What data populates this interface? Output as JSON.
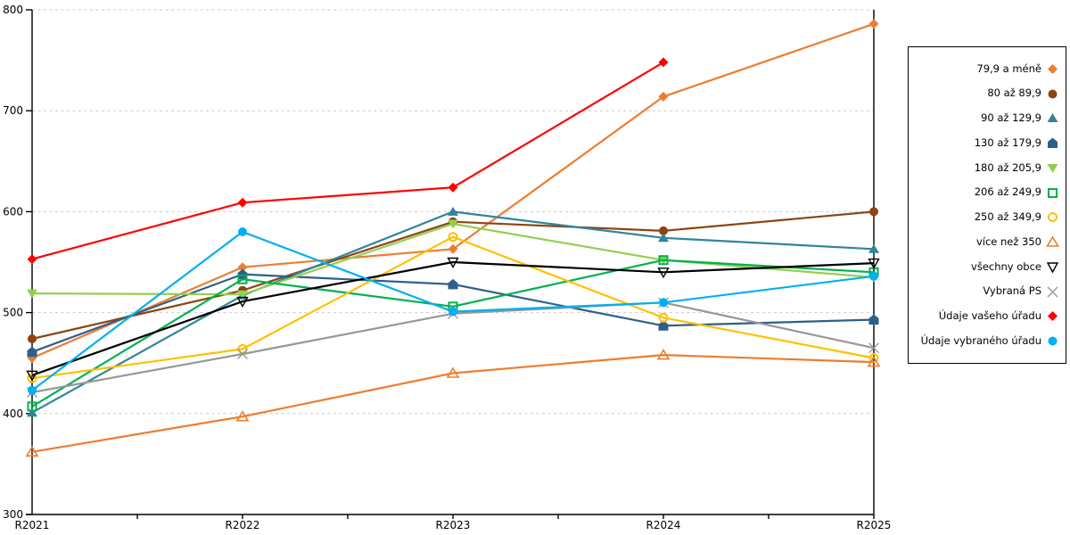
{
  "chart_data": {
    "type": "line",
    "title": "",
    "xlabel": "",
    "ylabel": "",
    "categories": [
      "R2021",
      "R2022",
      "R2023",
      "R2024",
      "R2025"
    ],
    "y_ticks": [
      300,
      400,
      500,
      600,
      700,
      800
    ],
    "ylim": [
      300,
      800
    ],
    "grid": "horizontal-dashed",
    "legend_position": "right",
    "gridline_color": "#c9c9c9",
    "axis_color": "#000000",
    "series": [
      {
        "name": "79,9 a méně",
        "color": "#ED7D31",
        "marker": "diamond-filled",
        "values": [
          455,
          545,
          563,
          714,
          786
        ]
      },
      {
        "name": "80 až 89,9",
        "color": "#8B4512",
        "marker": "circle-filled",
        "values": [
          474,
          522,
          590,
          581,
          600
        ]
      },
      {
        "name": "90 až 129,9",
        "color": "#31849B",
        "marker": "triangle-up-filled",
        "values": [
          401,
          517,
          600,
          574,
          563
        ]
      },
      {
        "name": "130 až 179,9",
        "color": "#2E5F8A",
        "marker": "pentagon-filled",
        "values": [
          461,
          538,
          528,
          487,
          493
        ]
      },
      {
        "name": "180 až 205,9",
        "color": "#92D050",
        "marker": "triangle-down-filled",
        "values": [
          519,
          518,
          588,
          552,
          535
        ]
      },
      {
        "name": "206 až 249,9",
        "color": "#00B050",
        "marker": "square-hollow",
        "values": [
          407,
          533,
          506,
          552,
          540
        ]
      },
      {
        "name": "250 až 349,9",
        "color": "#FFC000",
        "marker": "circle-hollow",
        "values": [
          435,
          464,
          575,
          495,
          455
        ]
      },
      {
        "name": "více než 350",
        "color": "#ED7D31",
        "marker": "triangle-up-hollow",
        "values": [
          362,
          397,
          440,
          458,
          451
        ]
      },
      {
        "name": "všechny obce",
        "color": "#000000",
        "marker": "triangle-down-hollow",
        "values": [
          438,
          511,
          550,
          540,
          549
        ]
      },
      {
        "name": "Vybraná PS",
        "color": "#979797",
        "marker": "x",
        "values": [
          421,
          459,
          499,
          510,
          465
        ]
      },
      {
        "name": "Údaje vašeho úřadu",
        "color": "#FF0000",
        "marker": "diamond-filled",
        "values": [
          553,
          609,
          624,
          748,
          null
        ]
      },
      {
        "name": "Údaje vybraného úřadu",
        "color": "#00B0F0",
        "marker": "circle-filled",
        "values": [
          423,
          580,
          501,
          510,
          536
        ]
      }
    ]
  }
}
